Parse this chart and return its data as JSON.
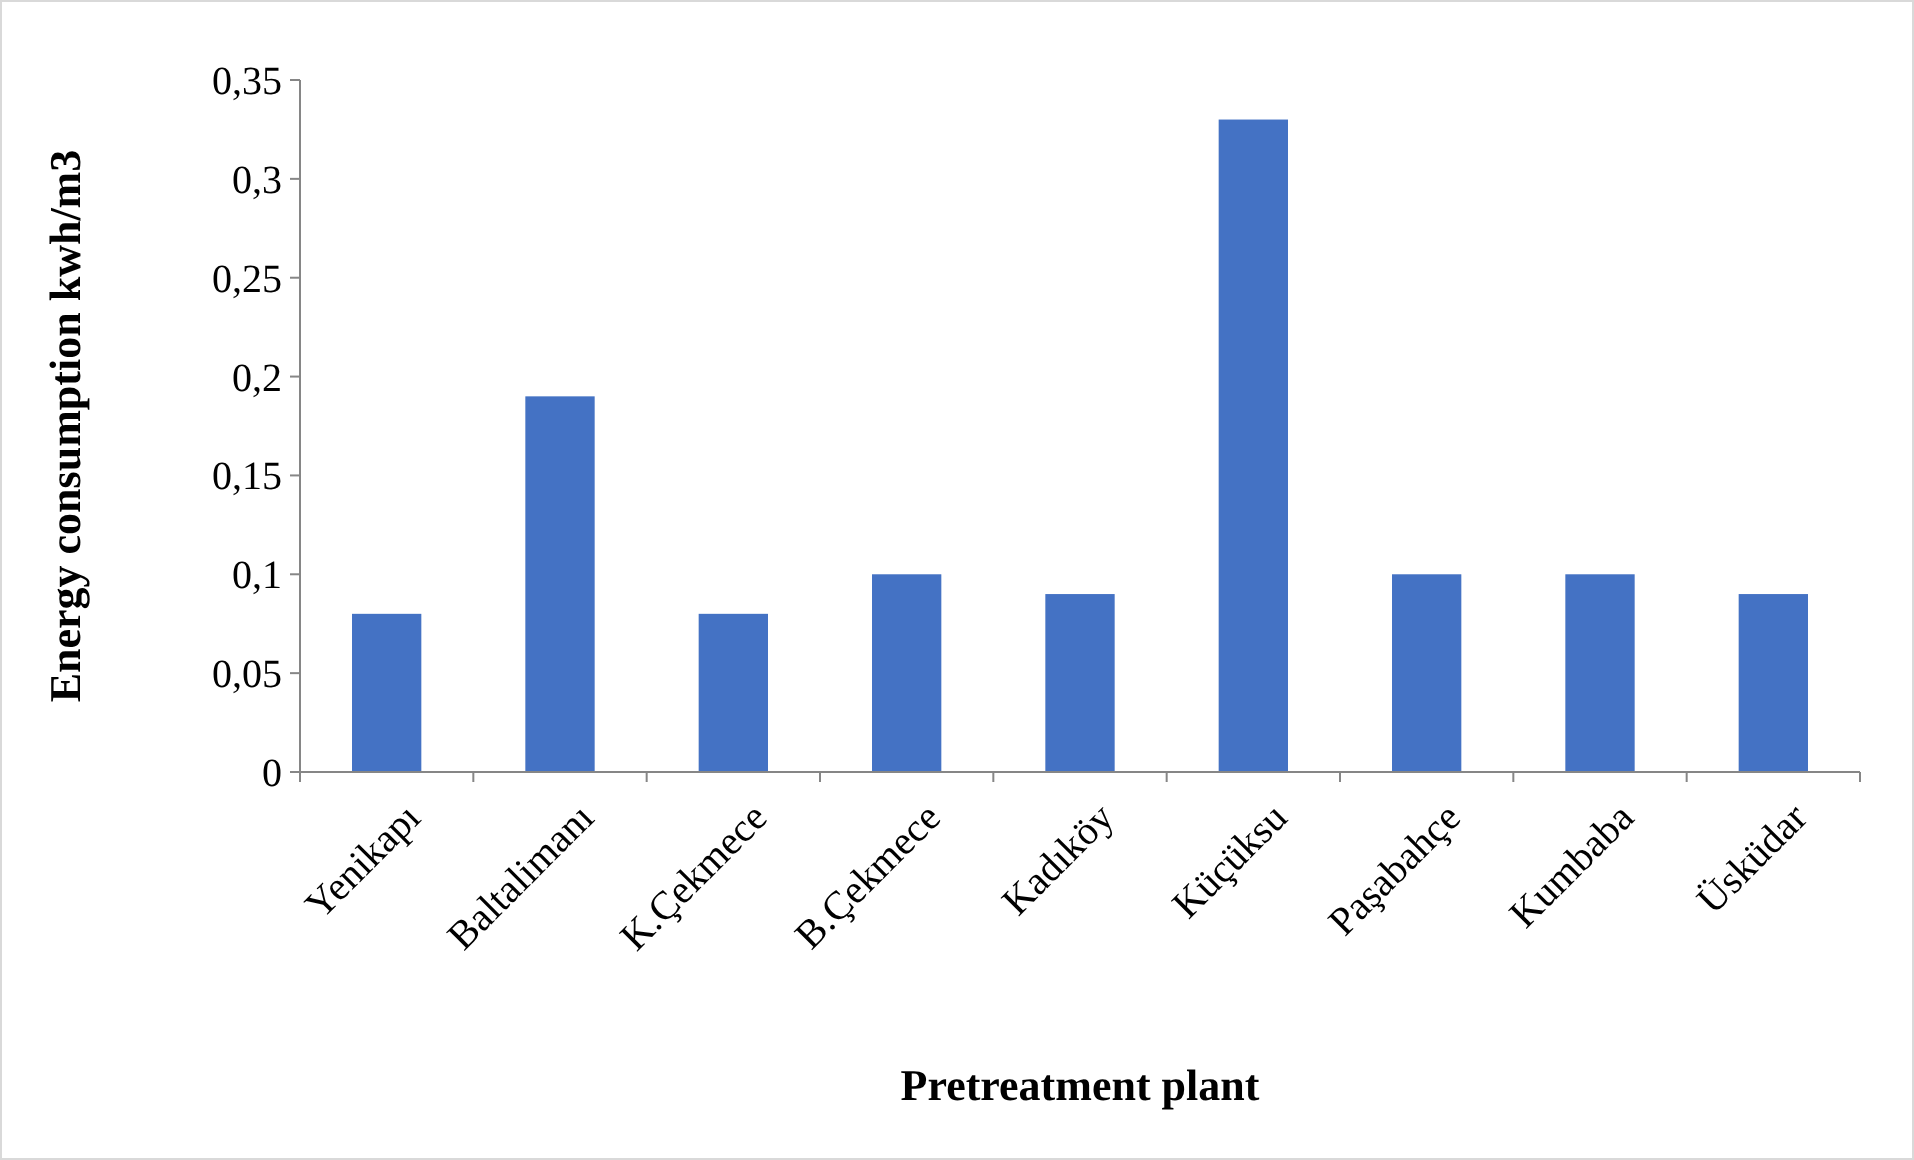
{
  "chart_data": {
    "type": "bar",
    "xlabel": "Pretreatment plant",
    "ylabel": "Energy consumption kwh/m3",
    "categories": [
      "Yenikapı",
      "Baltalimanı",
      "K.Çekmece",
      "B.Çekmece",
      "Kadıköy",
      "Küçüksu",
      "Paşabahçe",
      "Kumbaba",
      "Üsküdar"
    ],
    "values": [
      0.08,
      0.19,
      0.08,
      0.1,
      0.09,
      0.33,
      0.1,
      0.1,
      0.09
    ],
    "color": "#4472c4",
    "ylim": [
      0,
      0.35
    ],
    "yticks": [
      {
        "value": 0,
        "label": "0"
      },
      {
        "value": 0.05,
        "label": "0,05"
      },
      {
        "value": 0.1,
        "label": "0,1"
      },
      {
        "value": 0.15,
        "label": "0,15"
      },
      {
        "value": 0.2,
        "label": "0,2"
      },
      {
        "value": 0.25,
        "label": "0,25"
      },
      {
        "value": 0.3,
        "label": "0,3"
      },
      {
        "value": 0.35,
        "label": "0,35"
      }
    ],
    "grid": false
  }
}
